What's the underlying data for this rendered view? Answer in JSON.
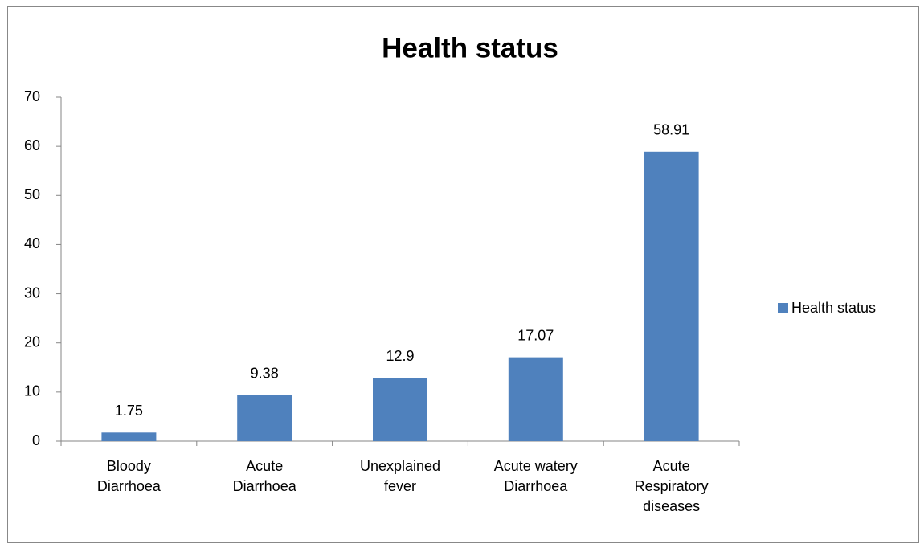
{
  "chart_data": {
    "type": "bar",
    "title": "Health status",
    "categories": [
      "Bloody Diarrhoea",
      "Acute Diarrhoea",
      "Unexplained fever",
      "Acute watery Diarrhoea",
      "Acute Respiratory diseases"
    ],
    "series": [
      {
        "name": "Health status",
        "color": "#4f81bd",
        "values": [
          1.75,
          9.38,
          12.9,
          17.07,
          58.91
        ]
      }
    ],
    "ylim": [
      0,
      70
    ],
    "yticks": [
      0,
      10,
      20,
      30,
      40,
      50,
      60,
      70
    ],
    "grid": false,
    "legend": "right"
  }
}
